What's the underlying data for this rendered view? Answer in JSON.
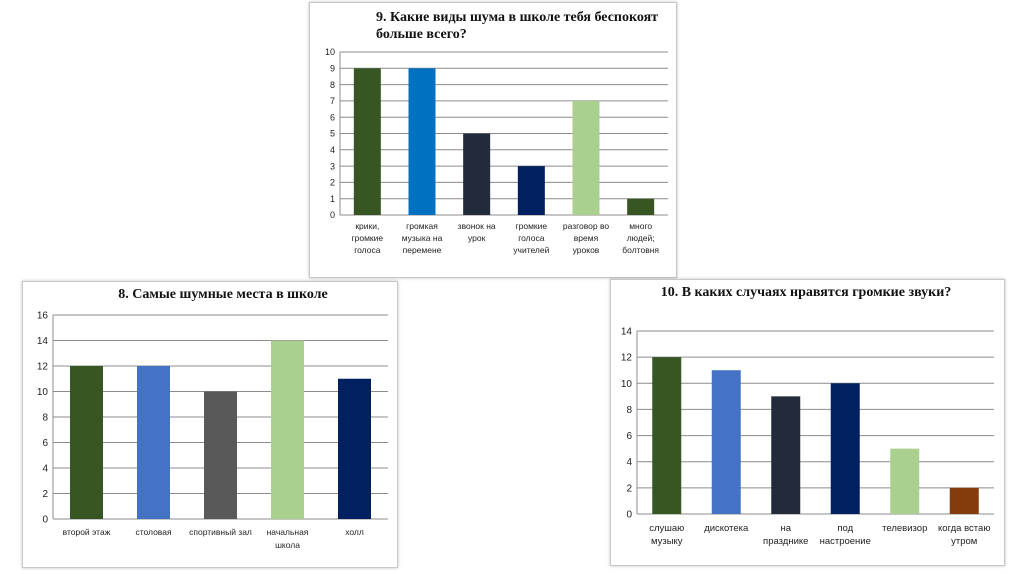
{
  "chart_data": [
    {
      "id": "chart9",
      "type": "bar",
      "title": "9. Какие виды шума в школе тебя беспокоят больше всего?",
      "categories": [
        [
          "крики,",
          "громкие",
          "голоса"
        ],
        [
          "громкая",
          "музыка на",
          "перемене"
        ],
        [
          "звонок на",
          "урок"
        ],
        [
          "громкие",
          "голоса",
          "учителей"
        ],
        [
          "разговор во",
          "время",
          "уроков"
        ],
        [
          "много",
          "людей;",
          "болтовня"
        ]
      ],
      "values": [
        9,
        9,
        5,
        3,
        7,
        1
      ],
      "colors": [
        "#375623",
        "#0070c0",
        "#212b3b",
        "#002060",
        "#a9d08e",
        "#375623"
      ],
      "ylim": [
        0,
        10
      ],
      "yticks": [
        0,
        1,
        2,
        3,
        4,
        5,
        6,
        7,
        8,
        9,
        10
      ],
      "grid": true,
      "xlabel": "",
      "ylabel": ""
    },
    {
      "id": "chart8",
      "type": "bar",
      "title": "8. Самые шумные места в школе",
      "categories": [
        [
          "второй этаж"
        ],
        [
          "столовая"
        ],
        [
          "спортивный зал"
        ],
        [
          "начальная",
          "школа"
        ],
        [
          "холл"
        ]
      ],
      "values": [
        12,
        12,
        10,
        14,
        11
      ],
      "colors": [
        "#375623",
        "#4472c4",
        "#595959",
        "#a9d08e",
        "#002060"
      ],
      "ylim": [
        0,
        16
      ],
      "yticks": [
        0,
        2,
        4,
        6,
        8,
        10,
        12,
        14,
        16
      ],
      "grid": true,
      "xlabel": "",
      "ylabel": ""
    },
    {
      "id": "chart10",
      "type": "bar",
      "title": "10. В каких случаях нравятся громкие звуки?",
      "categories": [
        [
          "слушаю",
          "музыку"
        ],
        [
          "дискотека"
        ],
        [
          "на",
          "празднике"
        ],
        [
          "под",
          "настроение"
        ],
        [
          "телевизор"
        ],
        [
          "когда встаю",
          "утром"
        ]
      ],
      "values": [
        12,
        11,
        9,
        10,
        5,
        2
      ],
      "colors": [
        "#375623",
        "#4472c4",
        "#212b3b",
        "#002060",
        "#a9d08e",
        "#843c0c"
      ],
      "ylim": [
        0,
        14
      ],
      "yticks": [
        0,
        2,
        4,
        6,
        8,
        10,
        12,
        14
      ],
      "grid": true,
      "xlabel": "",
      "ylabel": ""
    }
  ]
}
